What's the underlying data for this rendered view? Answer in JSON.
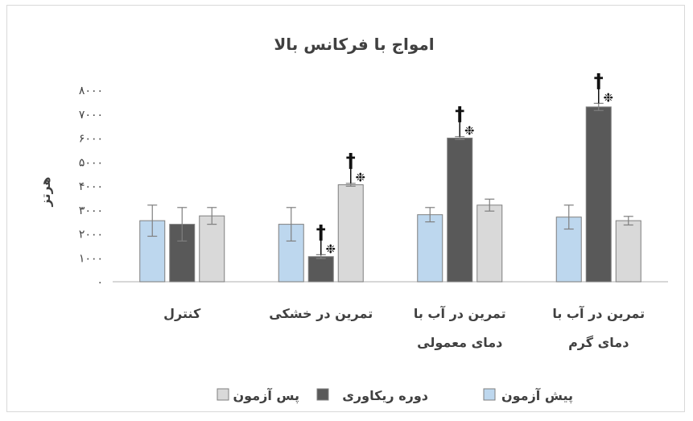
{
  "chart_data": {
    "type": "bar",
    "title": "امواج با فرکانس بالا",
    "ylabel": "هرتز",
    "xlabel": "",
    "ylim": [
      0,
      8000
    ],
    "yticks": [
      0,
      1000,
      2000,
      3000,
      4000,
      5000,
      6000,
      7000,
      8000
    ],
    "ytick_labels": [
      "۰",
      "۱۰۰۰",
      "۲۰۰۰",
      "۳۰۰۰",
      "۴۰۰۰",
      "۵۰۰۰",
      "۶۰۰۰",
      "۷۰۰۰",
      "۸۰۰۰"
    ],
    "categories": [
      [
        "کنترل"
      ],
      [
        "تمرین در خشکی"
      ],
      [
        "تمرین در آب با",
        "دمای معمولی"
      ],
      [
        "تمرین در آب با",
        "دمای گرم"
      ]
    ],
    "series": [
      {
        "name": "پیش آزمون",
        "color": "#bdd7ee",
        "values": [
          2550,
          2400,
          2800,
          2700
        ],
        "errors": [
          650,
          700,
          300,
          500
        ]
      },
      {
        "name": "دوره ریکاوری",
        "color": "#595959",
        "values": [
          2400,
          1050,
          6000,
          7300
        ],
        "errors": [
          700,
          80,
          60,
          150
        ]
      },
      {
        "name": "پس آزمون",
        "color": "#d9d9d9",
        "values": [
          2750,
          4050,
          3200,
          2550
        ],
        "errors": [
          350,
          60,
          250,
          180
        ]
      }
    ],
    "significance_marks": [
      {
        "category": 1,
        "series": 1,
        "symbols": [
          "†",
          "❉"
        ]
      },
      {
        "category": 1,
        "series": 2,
        "symbols": [
          "†",
          "❉"
        ]
      },
      {
        "category": 2,
        "series": 1,
        "symbols": [
          "†",
          "❉"
        ]
      },
      {
        "category": 3,
        "series": 1,
        "symbols": [
          "†",
          "❉"
        ]
      }
    ],
    "grid": false,
    "legend_position": "bottom"
  }
}
